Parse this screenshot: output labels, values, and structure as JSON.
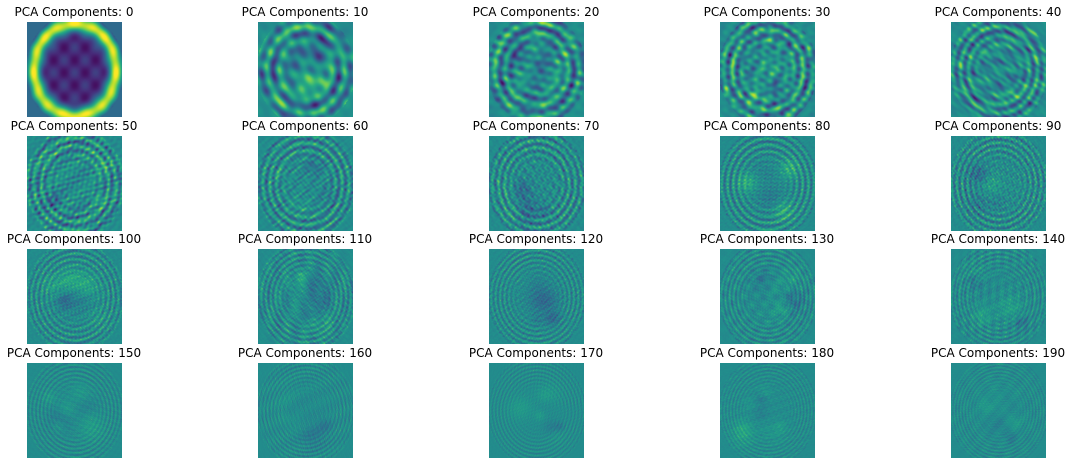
{
  "colormap": "viridis",
  "colors": {
    "background": "#ffffff",
    "text": "#000000",
    "low": "#440154",
    "mid": "#21918c",
    "high": "#fde725"
  },
  "grid": {
    "rows": 4,
    "columns": 5
  },
  "panels": [
    {
      "title": "PCA Components: 0",
      "components": 0
    },
    {
      "title": "PCA Components: 10",
      "components": 10
    },
    {
      "title": "PCA Components: 20",
      "components": 20
    },
    {
      "title": "PCA Components: 30",
      "components": 30
    },
    {
      "title": "PCA Components: 40",
      "components": 40
    },
    {
      "title": "PCA Components: 50",
      "components": 50
    },
    {
      "title": "PCA Components: 60",
      "components": 60
    },
    {
      "title": "PCA Components: 70",
      "components": 70
    },
    {
      "title": "PCA Components: 80",
      "components": 80
    },
    {
      "title": "PCA Components: 90",
      "components": 90
    },
    {
      "title": "PCA Components: 100",
      "components": 100
    },
    {
      "title": "PCA Components: 110",
      "components": 110
    },
    {
      "title": "PCA Components: 120",
      "components": 120
    },
    {
      "title": "PCA Components: 130",
      "components": 130
    },
    {
      "title": "PCA Components: 140",
      "components": 140
    },
    {
      "title": "PCA Components: 150",
      "components": 150
    },
    {
      "title": "PCA Components: 160",
      "components": 160
    },
    {
      "title": "PCA Components: 170",
      "components": 170
    },
    {
      "title": "PCA Components: 180",
      "components": 180
    },
    {
      "title": "PCA Components: 190",
      "components": 190
    }
  ]
}
